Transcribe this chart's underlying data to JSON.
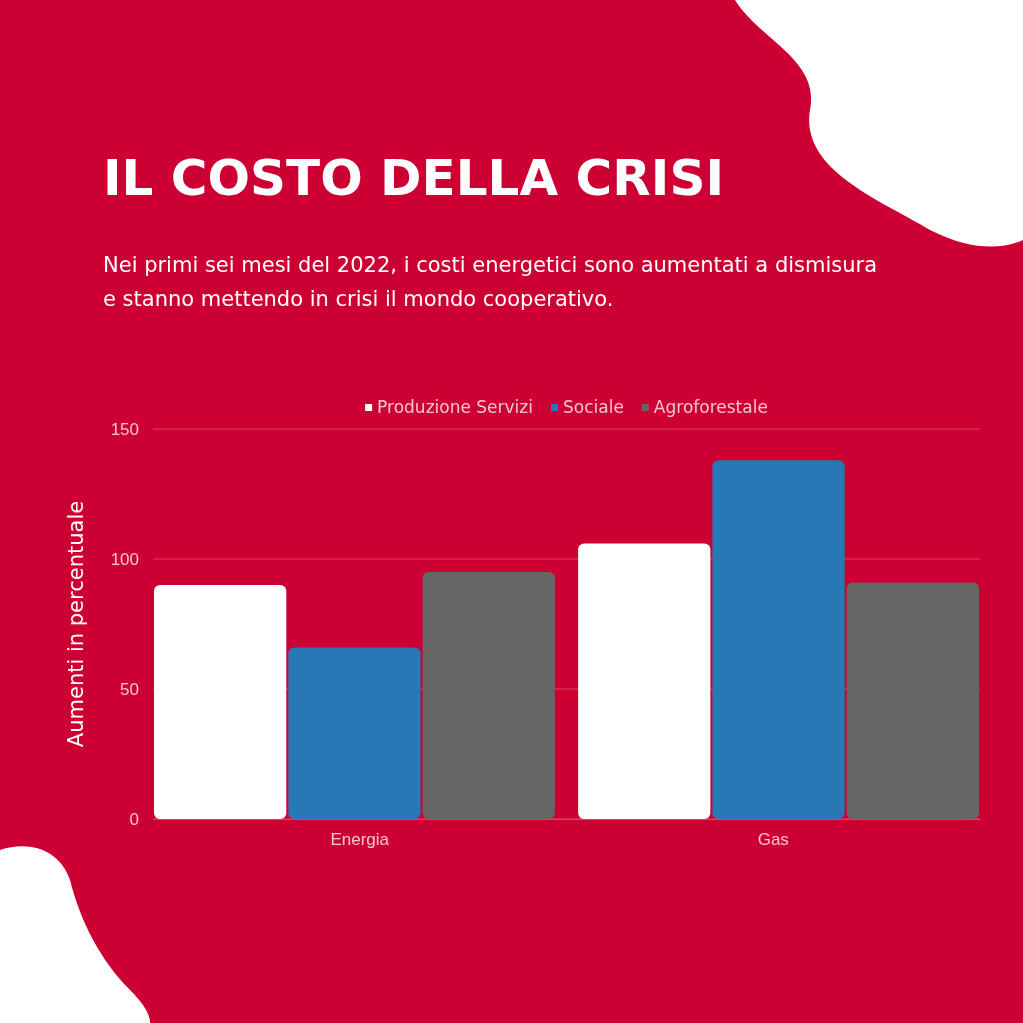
{
  "chart_data": {
    "type": "bar",
    "title": "IL COSTO DELLA CRISI",
    "subtitle": "Nei primi sei mesi del 2022, i costi energetici sono aumentati a dismisura e stanno mettendo in crisi il mondo cooperativo.",
    "ylabel": "Aumenti in percentuale",
    "categories": [
      "Energia",
      "Gas"
    ],
    "series": [
      {
        "name": "Produzione Servizi",
        "color": "#ffffff",
        "values": [
          90,
          106
        ]
      },
      {
        "name": "Sociale",
        "color": "#2878b5",
        "values": [
          66,
          138
        ]
      },
      {
        "name": "Agroforestale",
        "color": "#666666",
        "values": [
          95,
          91
        ]
      }
    ],
    "ylim": [
      0,
      150
    ],
    "yticks": [
      0,
      50,
      100,
      150
    ],
    "grid": "y",
    "legend": "top"
  }
}
